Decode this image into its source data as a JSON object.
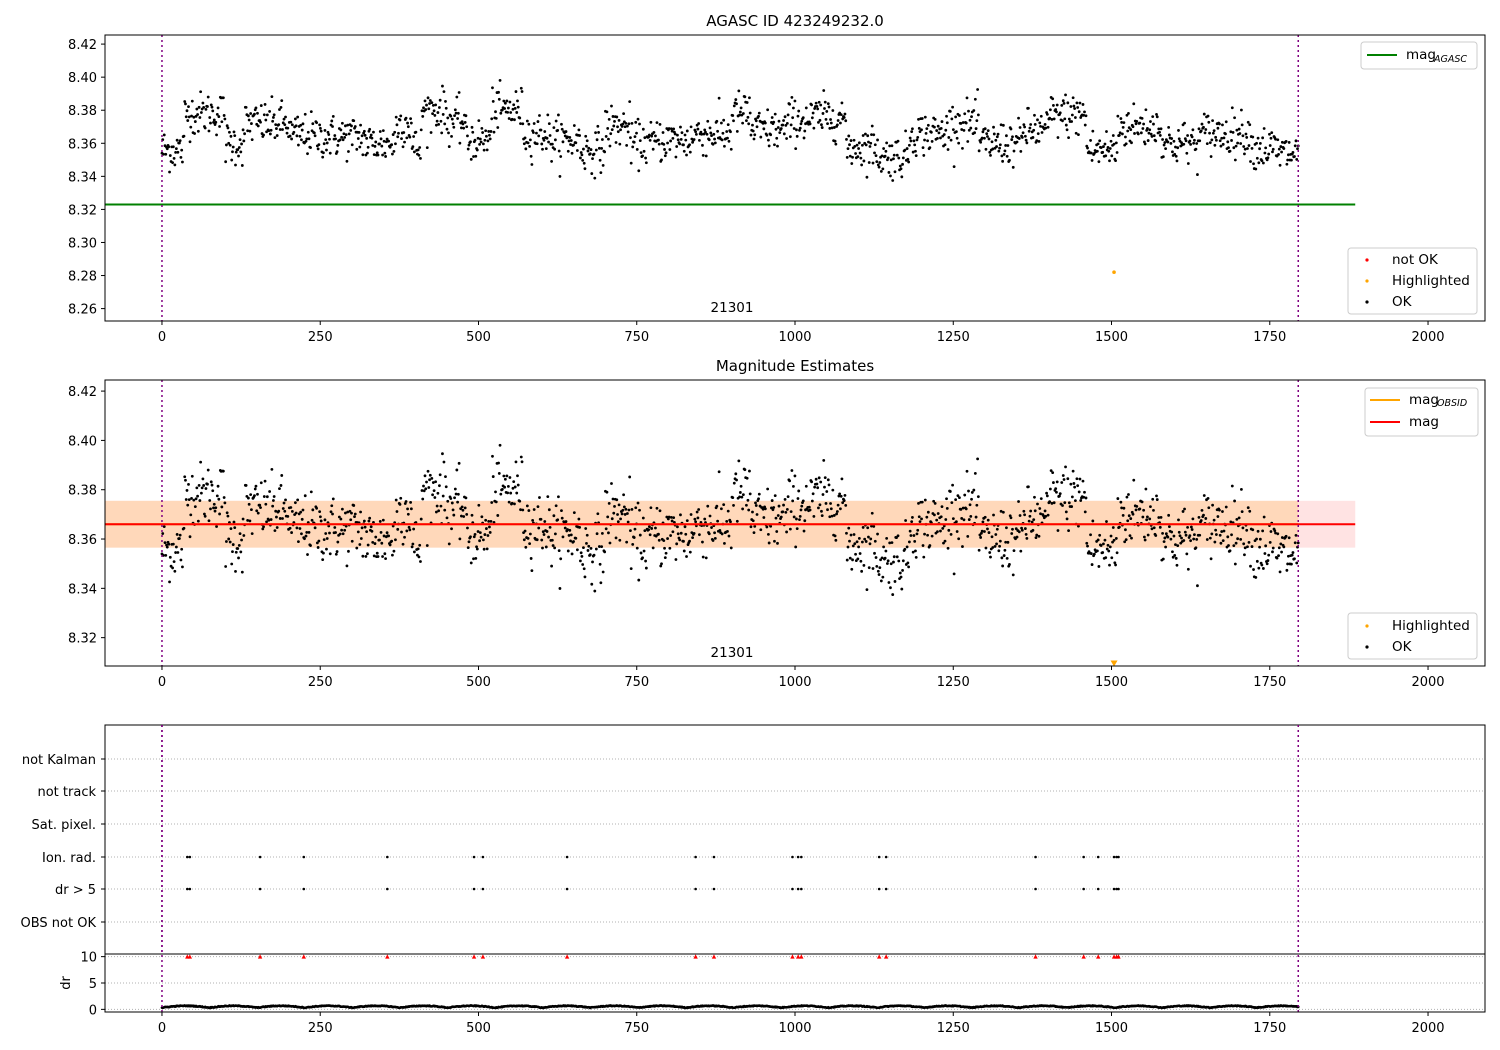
{
  "chart_data": [
    {
      "type": "scatter",
      "title": "AGASC ID 423249232.0",
      "xlim": [
        -90,
        2090
      ],
      "ylim": [
        8.2525,
        8.4255
      ],
      "xticks": [
        0,
        250,
        500,
        750,
        1000,
        1250,
        1500,
        1750,
        2000
      ],
      "yticks": [
        "8.26",
        "8.28",
        "8.30",
        "8.32",
        "8.34",
        "8.36",
        "8.38",
        "8.40",
        "8.42"
      ],
      "obsid_label": "21301",
      "obsid_boundaries": [
        0,
        1795
      ],
      "lines": [
        {
          "name": "mag",
          "name_subscript": "AGASC",
          "color": "#008000",
          "y": 8.323,
          "x": [
            -90,
            1885
          ]
        }
      ],
      "legend_top": [
        "mag_AGASC"
      ],
      "legend_bottom": [
        "not OK",
        "Highlighted",
        "OK"
      ],
      "series": [
        {
          "name": "not OK",
          "color": "#ff0000",
          "points": []
        },
        {
          "name": "Highlighted",
          "color": "#ffa500",
          "points": [
            [
              1504,
              8.282
            ]
          ]
        },
        {
          "name": "OK",
          "color": "#000000",
          "x_range": [
            0,
            1795
          ],
          "count": 1500
        }
      ]
    },
    {
      "type": "scatter",
      "title": "Magnitude Estimates",
      "xlim": [
        -90,
        2090
      ],
      "ylim": [
        8.3085,
        8.4245
      ],
      "xticks": [
        0,
        250,
        500,
        750,
        1000,
        1250,
        1500,
        1750,
        2000
      ],
      "yticks": [
        "8.32",
        "8.34",
        "8.36",
        "8.38",
        "8.40",
        "8.42"
      ],
      "obsid_label": "21301",
      "obsid_boundaries": [
        0,
        1795
      ],
      "lines": [
        {
          "name": "mag",
          "name_subscript": "OBSID",
          "color": "#ffa500",
          "y": 8.366,
          "band": [
            8.3565,
            8.3755
          ]
        },
        {
          "name": "mag",
          "color": "#ff0000",
          "y": 8.366,
          "band": [
            8.3565,
            8.3755
          ],
          "x": [
            -90,
            1885
          ]
        }
      ],
      "legend_top": [
        "mag_OBSID",
        "mag"
      ],
      "legend_bottom": [
        "Highlighted",
        "OK"
      ],
      "series": [
        {
          "name": "Highlighted",
          "color": "#ffa500",
          "points": [
            [
              1504,
              8.3095
            ]
          ]
        },
        {
          "name": "OK",
          "color": "#000000",
          "x_range": [
            0,
            1795
          ],
          "count": 1500
        }
      ]
    },
    {
      "type": "scatter",
      "xlim": [
        -90,
        2090
      ],
      "flag_rows": [
        "not Kalman",
        "not track",
        "Sat. pixel.",
        "Ion. rad.",
        "dr > 5",
        "OBS not OK"
      ],
      "flag_points": {
        "Ion. rad.": [
          40,
          44,
          155,
          224,
          356,
          493,
          507,
          640,
          843,
          872,
          996,
          1005,
          1010,
          1133,
          1144,
          1380,
          1456,
          1479,
          1504,
          1508,
          1511
        ],
        "dr > 5": [
          40,
          44,
          155,
          224,
          356,
          493,
          507,
          640,
          843,
          872,
          996,
          1005,
          1010,
          1133,
          1144,
          1380,
          1456,
          1479,
          1504,
          1508,
          1511
        ]
      }
    },
    {
      "type": "scatter",
      "ylabel": "dr",
      "xlim": [
        -90,
        2090
      ],
      "ylim": [
        -0.5,
        10.5
      ],
      "xticks": [
        0,
        250,
        500,
        750,
        1000,
        1250,
        1500,
        1750,
        2000
      ],
      "yticks": [
        "0",
        "5",
        "10"
      ],
      "clipped_points_y": 10,
      "clipped_points_x": [
        40,
        44,
        155,
        224,
        356,
        493,
        507,
        640,
        843,
        872,
        996,
        1005,
        1010,
        1133,
        1144,
        1380,
        1456,
        1479,
        1504,
        1508,
        1511
      ],
      "series": [
        {
          "name": "dr",
          "color": "#000000",
          "x_range": [
            0,
            1795
          ],
          "y_range": [
            0,
            0.9
          ]
        }
      ]
    }
  ]
}
